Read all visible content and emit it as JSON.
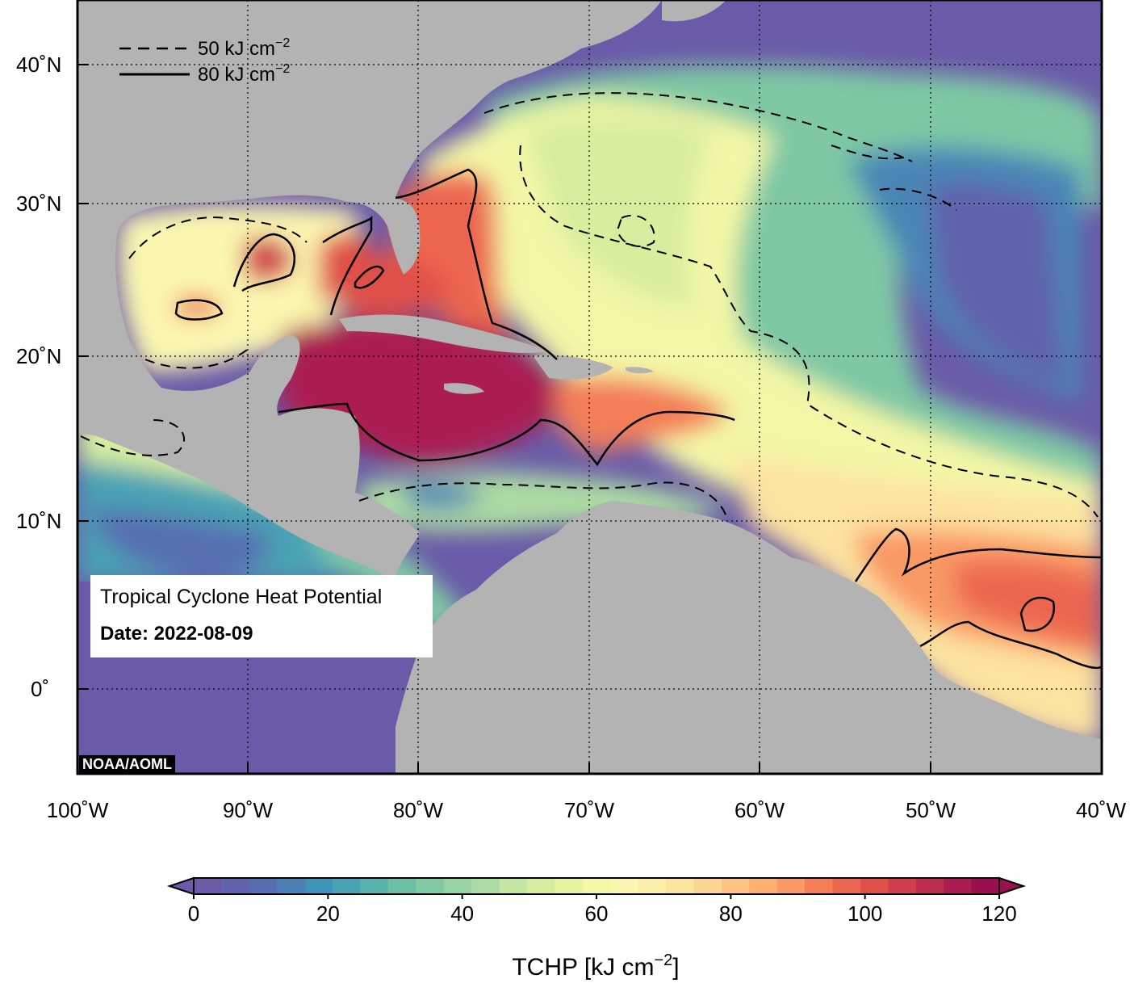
{
  "map": {
    "lon_labels": [
      "100˚W",
      "90˚W",
      "80˚W",
      "70˚W",
      "60˚W",
      "50˚W",
      "40˚W"
    ],
    "lat_labels": [
      "40˚N",
      "30˚N",
      "20˚N",
      "10˚N",
      "0˚"
    ],
    "colors": {
      "land": "#b3b3b3",
      "ocean_cold": "#6a5aa8",
      "grid": "#000000"
    }
  },
  "legend": {
    "dashed_label": "50 kJ cm",
    "solid_label": "80 kJ cm",
    "exponent": "−2"
  },
  "info": {
    "title": "Tropical Cyclone Heat Potential",
    "date": "Date: 2022-08-09"
  },
  "credit": "NOAA/AOML",
  "colorbar": {
    "ticks": [
      "0",
      "20",
      "40",
      "60",
      "80",
      "100",
      "120"
    ],
    "label": "TCHP [kJ cm",
    "label_exp": "−2",
    "label_end": "]",
    "colors": [
      "#6a5aa8",
      "#6163ad",
      "#566fb2",
      "#4a80b6",
      "#3f92b8",
      "#4aa3b4",
      "#5ab3ac",
      "#6cbfa5",
      "#80c9a3",
      "#96d2a4",
      "#acdca3",
      "#c3e6a2",
      "#d7ee9f",
      "#e7f49f",
      "#f3f7a6",
      "#fbf7b0",
      "#fdf0aa",
      "#fde3a0",
      "#fdd592",
      "#fdc483",
      "#fcb073",
      "#f99965",
      "#f47e58",
      "#ec6650",
      "#e05049",
      "#d03f4b",
      "#bd2e4f",
      "#ab1d51",
      "#9b1050"
    ]
  }
}
